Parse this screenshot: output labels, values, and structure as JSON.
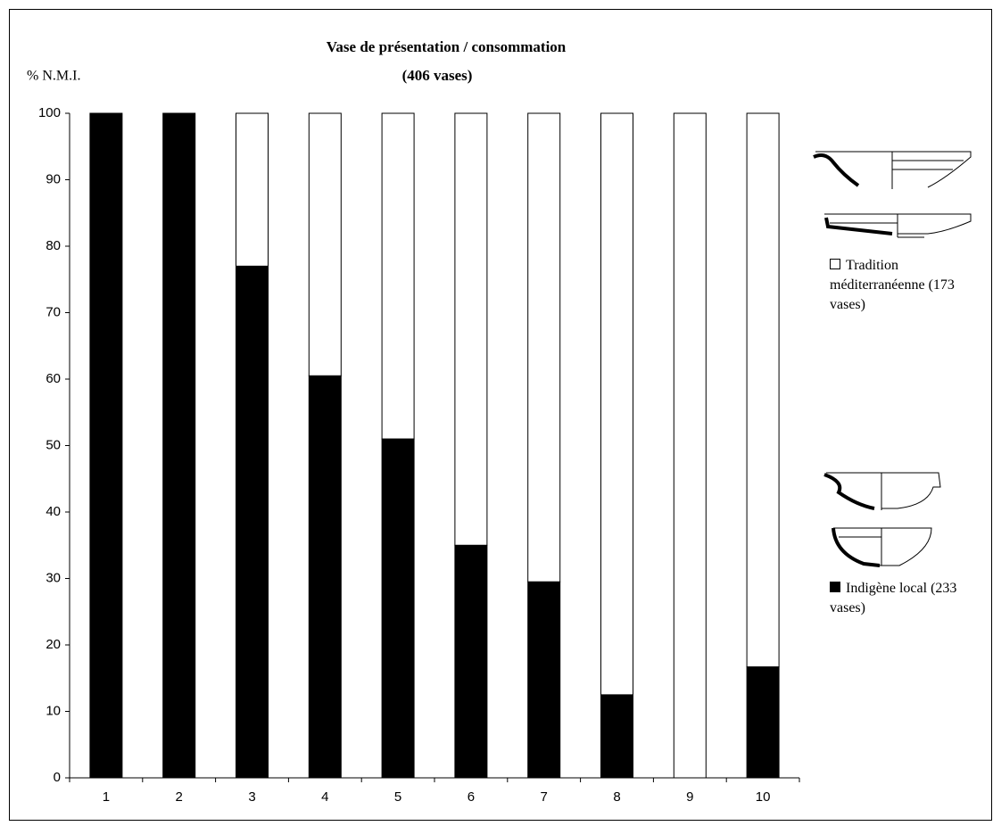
{
  "chart_data": {
    "type": "stacked_bar",
    "title": "Vase de présentation / consommation",
    "subtitle": "(406 vases)",
    "y_label": "% N.M.I.",
    "categories": [
      "1",
      "2",
      "3",
      "4",
      "5",
      "6",
      "7",
      "8",
      "9",
      "10"
    ],
    "series": [
      {
        "name": "Indigène local (233 vases)",
        "color": "#000000",
        "values": [
          100,
          100,
          77,
          60.5,
          51,
          35,
          29.5,
          12.5,
          0,
          16.7
        ]
      },
      {
        "name": "Tradition méditerranéenne (173 vases)",
        "color": "#ffffff",
        "values": [
          0,
          0,
          23,
          39.5,
          49,
          65,
          70.5,
          87.5,
          100,
          83.3
        ]
      }
    ],
    "ylim": [
      0,
      100
    ],
    "yticks": [
      0,
      10,
      20,
      30,
      40,
      50,
      60,
      70,
      80,
      90,
      100
    ],
    "grid": false
  }
}
